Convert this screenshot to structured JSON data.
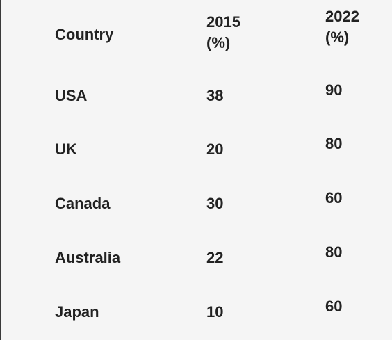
{
  "table": {
    "headers": {
      "country": "Country",
      "y2015": [
        "2015",
        "(%)"
      ],
      "y2022": [
        "2022",
        "(%)"
      ]
    },
    "rows": [
      {
        "country": "USA",
        "y2015": "38",
        "y2022": "90"
      },
      {
        "country": "UK",
        "y2015": "20",
        "y2022": "80"
      },
      {
        "country": "Canada",
        "y2015": "30",
        "y2022": "60"
      },
      {
        "country": "Australia",
        "y2015": "22",
        "y2022": "80"
      },
      {
        "country": "Japan",
        "y2015": "10",
        "y2022": "60"
      }
    ]
  }
}
